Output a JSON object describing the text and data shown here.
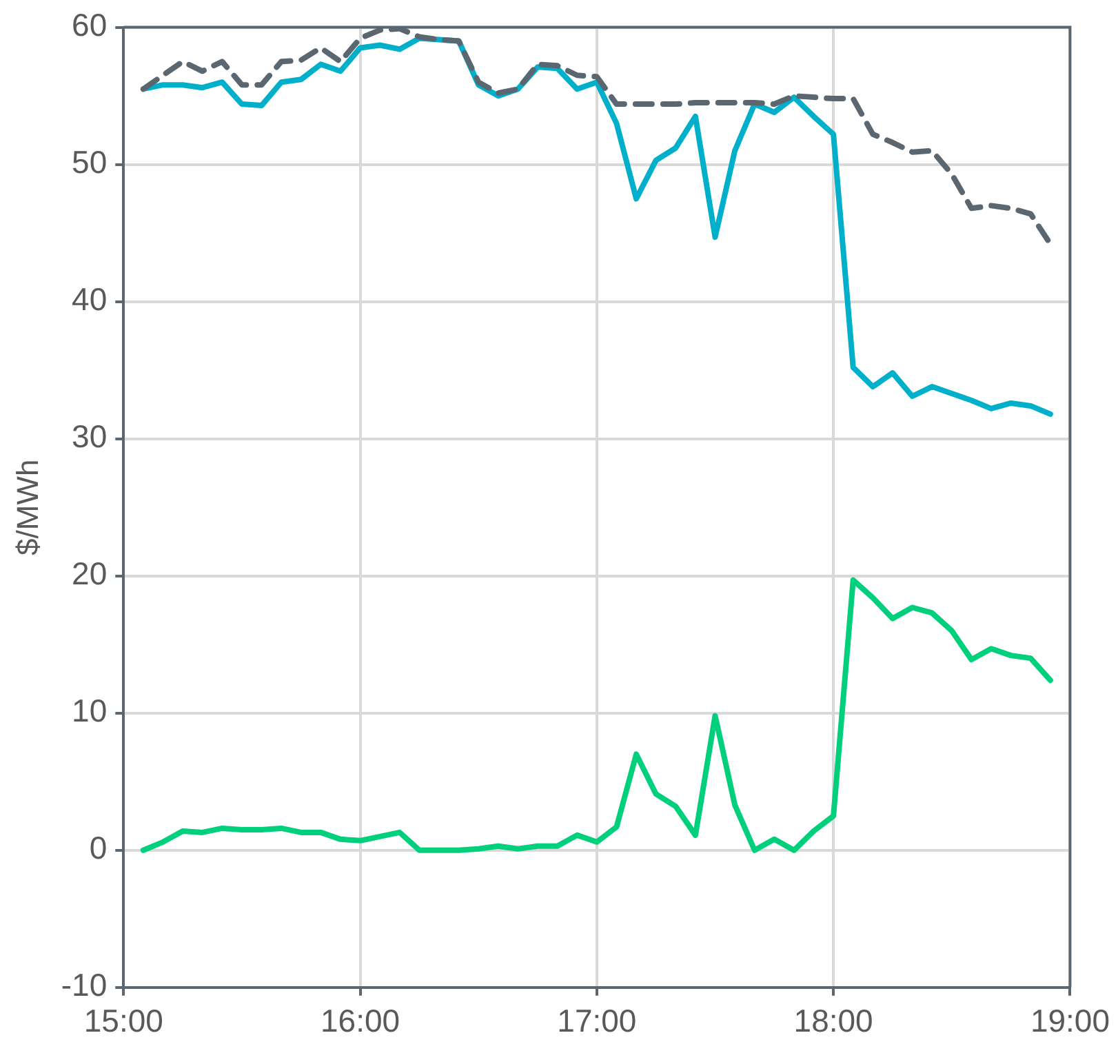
{
  "chart_data": {
    "type": "line",
    "ylabel": "$/MWh",
    "xlim": [
      15,
      19
    ],
    "ylim": [
      -10,
      60
    ],
    "xticks": [
      {
        "value": 15,
        "label": "15:00"
      },
      {
        "value": 16,
        "label": "16:00"
      },
      {
        "value": 17,
        "label": "17:00"
      },
      {
        "value": 18,
        "label": "18:00"
      },
      {
        "value": 19,
        "label": "19:00"
      }
    ],
    "yticks": [
      -10,
      0,
      10,
      20,
      30,
      40,
      50,
      60
    ],
    "grid": true,
    "legend": false,
    "marker": "none",
    "x": [
      15.0833,
      15.1667,
      15.25,
      15.3333,
      15.4167,
      15.5,
      15.5833,
      15.6667,
      15.75,
      15.8333,
      15.9167,
      16,
      16.0833,
      16.1667,
      16.25,
      16.3333,
      16.4167,
      16.5,
      16.5833,
      16.6667,
      16.75,
      16.8333,
      16.9167,
      17,
      17.0833,
      17.1667,
      17.25,
      17.3333,
      17.4167,
      17.5,
      17.5833,
      17.6667,
      17.75,
      17.8333,
      17.9167,
      18,
      18.0833,
      18.1667,
      18.25,
      18.3333,
      18.4167,
      18.5,
      18.5833,
      18.6667,
      18.75,
      18.8333,
      18.9167
    ],
    "series": [
      {
        "color": "#5a6670",
        "line_style": "dashed",
        "values": [
          55.5,
          56.5,
          57.5,
          56.8,
          57.5,
          55.8,
          55.8,
          57.5,
          57.6,
          58.5,
          57.5,
          59.2,
          59.8,
          59.9,
          59.3,
          59.1,
          59.0,
          56.0,
          55.2,
          55.5,
          57.3,
          57.2,
          56.5,
          56.4,
          54.4,
          54.4,
          54.4,
          54.4,
          54.5,
          54.5,
          54.5,
          54.5,
          54.4,
          55.0,
          54.9,
          54.8,
          54.8,
          52.2,
          51.6,
          50.9,
          51.0,
          49.3,
          46.8,
          47.0,
          46.8,
          46.4,
          44.2
        ]
      },
      {
        "color": "#00afc9",
        "line_style": "solid",
        "values": [
          55.5,
          55.8,
          55.8,
          55.6,
          56.0,
          54.4,
          54.3,
          56.0,
          56.2,
          57.3,
          56.8,
          58.5,
          58.7,
          58.4,
          59.2,
          59.1,
          59.0,
          55.8,
          55.0,
          55.5,
          57.1,
          57.0,
          55.5,
          56.0,
          53.0,
          47.5,
          50.3,
          51.2,
          53.5,
          44.7,
          51.0,
          54.4,
          53.8,
          54.9,
          53.5,
          52.2,
          35.2,
          33.8,
          34.8,
          33.1,
          33.8,
          33.3,
          32.8,
          32.2,
          32.6,
          32.4,
          31.8
        ]
      },
      {
        "color": "#00d07c",
        "line_style": "solid",
        "values": [
          0.0,
          0.6,
          1.4,
          1.3,
          1.6,
          1.5,
          1.5,
          1.6,
          1.3,
          1.3,
          0.8,
          0.7,
          1.0,
          1.3,
          0.0,
          0.0,
          0.0,
          0.1,
          0.3,
          0.1,
          0.3,
          0.3,
          1.1,
          0.6,
          1.7,
          7.0,
          4.1,
          3.2,
          1.1,
          9.8,
          3.3,
          0.0,
          0.8,
          0.0,
          1.4,
          2.5,
          19.7,
          18.4,
          16.9,
          17.7,
          17.3,
          16.0,
          13.9,
          14.7,
          14.2,
          14.0,
          12.4
        ]
      }
    ]
  }
}
